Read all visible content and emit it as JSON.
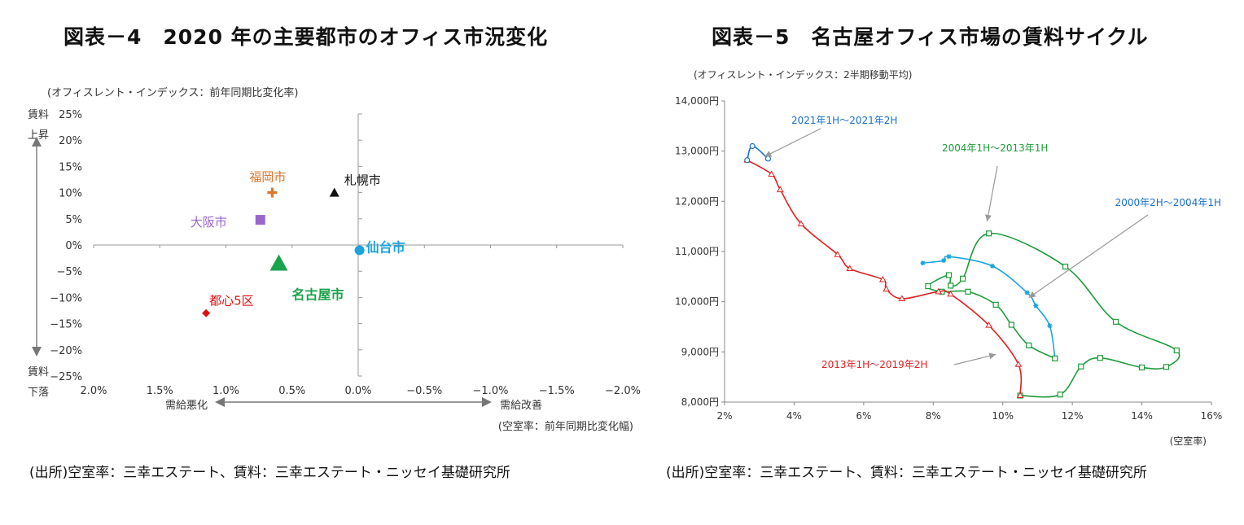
{
  "source_label": "(出所)空室率：三幸エステート、賃料：三幸エステート・ニッセイ基礎研究所",
  "chart_data": [
    {
      "type": "scatter",
      "title": "図表－4　2020 年の主要都市のオフィス市況変化",
      "y_unit_note": "(オフィスレント・インデックス：前年同期比変化率)",
      "x_unit_note": "(空室率：前年同期比変化幅)",
      "x_reversed": true,
      "xlim": [
        -2.0,
        2.0
      ],
      "ylim": [
        -25,
        25
      ],
      "x_ticks": [
        2.0,
        1.5,
        1.0,
        0.5,
        0.0,
        -0.5,
        -1.0,
        -1.5,
        -2.0
      ],
      "x_tick_labels": [
        "2.0%",
        "1.5%",
        "1.0%",
        "0.5%",
        "0.0%",
        "−0.5%",
        "−1.0%",
        "−1.5%",
        "−2.0%"
      ],
      "y_ticks": [
        25,
        20,
        15,
        10,
        5,
        0,
        -5,
        -10,
        -15,
        -20,
        -25
      ],
      "y_tick_labels": [
        "25%",
        "20%",
        "15%",
        "10%",
        "5%",
        "0%",
        "−5%",
        "−10%",
        "−15%",
        "−20%",
        "−25%"
      ],
      "y_arrow_top_label": [
        "賃料",
        "上昇"
      ],
      "y_arrow_bottom_label": [
        "賃料",
        "下落"
      ],
      "x_arrow_left_label": "需給悪化",
      "x_arrow_right_label": "需給改善",
      "points": [
        {
          "label": "福岡市",
          "x": 0.65,
          "y": 10.0,
          "color": "#d9772b",
          "marker": "plus",
          "label_dx": -28,
          "label_dy": -14,
          "bold": false
        },
        {
          "label": "札幌市",
          "x": 0.18,
          "y": 10.0,
          "color": "#111111",
          "marker": "triangle",
          "label_dx": 12,
          "label_dy": -10,
          "bold": false
        },
        {
          "label": "大阪市",
          "x": 0.74,
          "y": 4.8,
          "color": "#9966cc",
          "marker": "square",
          "label_dx": -86,
          "label_dy": 8,
          "bold": false
        },
        {
          "label": "仙台市",
          "x": -0.01,
          "y": -1.0,
          "color": "#1aa3dd",
          "marker": "circle",
          "label_dx": 8,
          "label_dy": 2,
          "bold": true
        },
        {
          "label": "名古屋市",
          "x": 0.6,
          "y": -3.5,
          "color": "#1aa34a",
          "marker": "triangle-big",
          "label_dx": 16,
          "label_dy": 44,
          "bold": true
        },
        {
          "label": "都心5区",
          "x": 1.15,
          "y": -13.0,
          "color": "#dd1111",
          "marker": "diamond",
          "label_dx": 4,
          "label_dy": -10,
          "bold": false
        }
      ]
    },
    {
      "type": "line",
      "title": "図表－5　名古屋オフィス市場の賃料サイクル",
      "y_unit_note": "(オフィスレント・インデックス：2半期移動平均)",
      "x_unit_note": "(空室率)",
      "xlim": [
        2,
        16
      ],
      "ylim": [
        8000,
        14000
      ],
      "x_ticks": [
        2,
        4,
        6,
        8,
        10,
        12,
        14,
        16
      ],
      "x_tick_labels": [
        "2%",
        "4%",
        "6%",
        "8%",
        "10%",
        "12%",
        "14%",
        "16%"
      ],
      "y_ticks": [
        8000,
        9000,
        10000,
        11000,
        12000,
        13000,
        14000
      ],
      "y_tick_labels": [
        "8,000円",
        "9,000円",
        "10,000円",
        "11,000円",
        "12,000円",
        "13,000円",
        "14,000円"
      ],
      "series": [
        {
          "name": "2000年2H～2004年1H",
          "color": "#1aa3dd",
          "marker": "star",
          "points": [
            [
              7.7,
              10770
            ],
            [
              8.3,
              10820
            ],
            [
              8.45,
              10900
            ],
            [
              9.7,
              10710
            ],
            [
              10.7,
              10180
            ],
            [
              10.95,
              9920
            ],
            [
              11.35,
              9520
            ],
            [
              11.5,
              8870
            ]
          ]
        },
        {
          "name": "2004年1H～2013年1H",
          "color": "#1f9c3a",
          "marker": "square",
          "points": [
            [
              11.5,
              8870
            ],
            [
              10.75,
              9130
            ],
            [
              10.25,
              9540
            ],
            [
              9.8,
              9940
            ],
            [
              9.0,
              10200
            ],
            [
              8.25,
              10200
            ],
            [
              7.85,
              10310
            ],
            [
              8.45,
              10530
            ],
            [
              8.5,
              10320
            ],
            [
              8.85,
              10460
            ],
            [
              9.6,
              11360
            ],
            [
              11.8,
              10700
            ],
            [
              13.25,
              9600
            ],
            [
              15.0,
              9030
            ],
            [
              14.7,
              8700
            ],
            [
              14.0,
              8690
            ],
            [
              12.8,
              8880
            ],
            [
              12.25,
              8710
            ],
            [
              11.65,
              8150
            ],
            [
              10.5,
              8130
            ]
          ]
        },
        {
          "name": "2013年1H～2019年2H",
          "color": "#e02020",
          "marker": "triangle",
          "points": [
            [
              10.5,
              8130
            ],
            [
              10.45,
              8750
            ],
            [
              9.6,
              9530
            ],
            [
              8.5,
              10150
            ],
            [
              8.15,
              10200
            ],
            [
              7.1,
              10060
            ],
            [
              6.65,
              10250
            ],
            [
              6.55,
              10440
            ],
            [
              5.6,
              10660
            ],
            [
              5.25,
              10940
            ],
            [
              4.2,
              11550
            ],
            [
              3.6,
              12230
            ],
            [
              3.35,
              12540
            ],
            [
              2.65,
              12820
            ]
          ]
        },
        {
          "name": "2021年1H～2021年2H",
          "color": "#1a6fc9",
          "marker": "circle",
          "points": [
            [
              2.65,
              12820
            ],
            [
              2.8,
              13100
            ],
            [
              3.25,
              12850
            ]
          ]
        }
      ],
      "annotations": [
        {
          "text": "2021年1H～2021年2H",
          "color": "#1a6fc9",
          "arrow_to": [
            3.15,
            12890
          ]
        },
        {
          "text": "2004年1H～2013年1H",
          "color": "#1f9c3a",
          "arrow_to": [
            9.55,
            11600
          ]
        },
        {
          "text": "2000年2H～2004年1H",
          "color": "#1a6fc9",
          "arrow_to": [
            10.75,
            10080
          ]
        },
        {
          "text": "2013年1H～2019年2H",
          "color": "#e02020",
          "arrow_to": [
            9.8,
            8950
          ]
        }
      ]
    }
  ]
}
